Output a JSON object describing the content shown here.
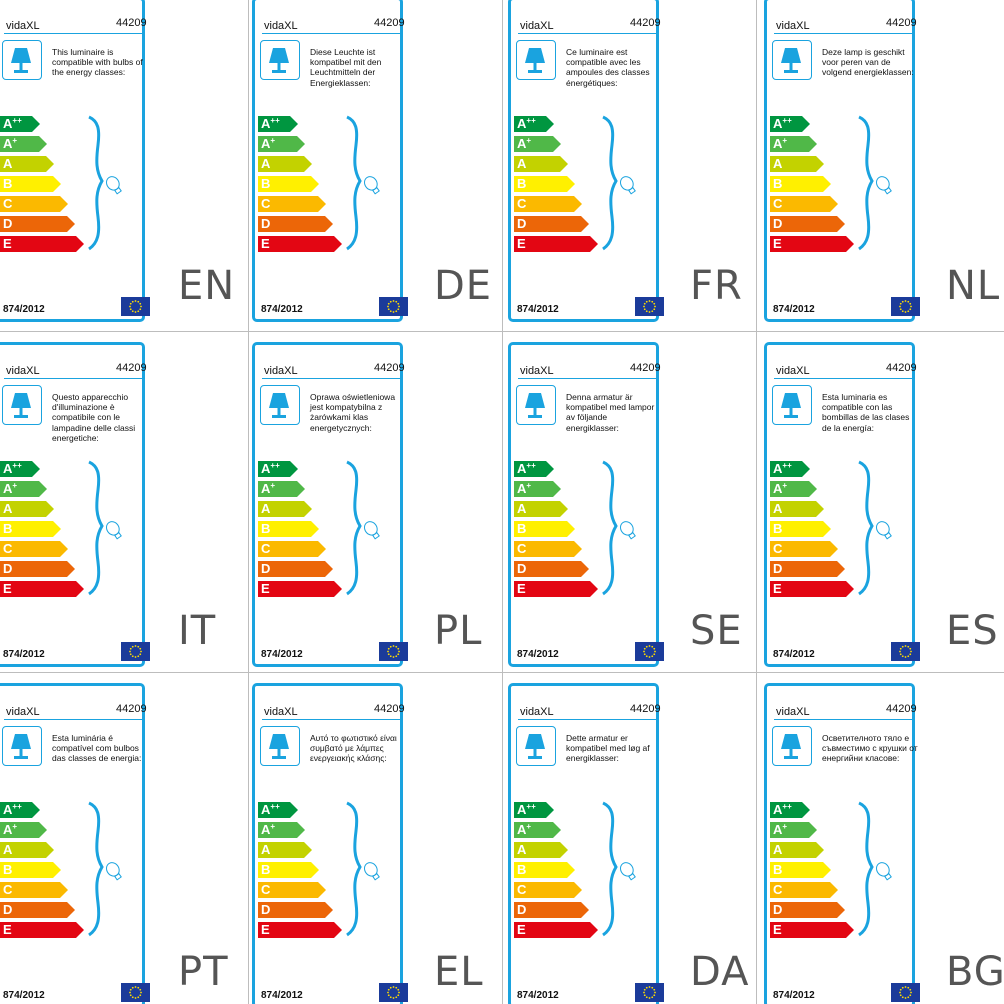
{
  "colors": {
    "frame": "#1aa3df",
    "eu_flag": "#1b3b9a",
    "classes": [
      "#009640",
      "#50b848",
      "#c3d200",
      "#fff000",
      "#fbb900",
      "#ec6608",
      "#e30613"
    ]
  },
  "brand": "vidaXL",
  "product_code": "44209",
  "regulation": "874/2012",
  "icons": [
    "lamp-icon",
    "bracket-icon",
    "bulb-icon",
    "eu-flag-icon"
  ],
  "energy_classes": [
    {
      "letter": "A",
      "plus": "++"
    },
    {
      "letter": "A",
      "plus": "+"
    },
    {
      "letter": "A",
      "plus": ""
    },
    {
      "letter": "B",
      "plus": ""
    },
    {
      "letter": "C",
      "plus": ""
    },
    {
      "letter": "D",
      "plus": ""
    },
    {
      "letter": "E",
      "plus": ""
    }
  ],
  "labels": [
    {
      "lang": "EN",
      "text": "This luminaire is compatible with bulbs of the energy classes:"
    },
    {
      "lang": "DE",
      "text": "Diese Leuchte ist kompatibel mit den Leuchtmitteln der Energieklassen:"
    },
    {
      "lang": "FR",
      "text": "Ce luminaire est compatible avec les ampoules des classes énergétiques:"
    },
    {
      "lang": "NL",
      "text": "Deze lamp is geschikt voor peren van de volgend energieklassen:"
    },
    {
      "lang": "IT",
      "text": "Questo apparecchio d'illuminazione è compatibile con le lampadine delle classi energetiche:"
    },
    {
      "lang": "PL",
      "text": "Oprawa oświetleniowa jest kompatybilna z żarówkami klas energetycznych:"
    },
    {
      "lang": "SE",
      "text": "Denna armatur är kompatibel med lampor av följande energiklasser:"
    },
    {
      "lang": "ES",
      "text": "Esta luminaria es compatible con las bombillas de las clases de la energía:"
    },
    {
      "lang": "PT",
      "text": "Esta luminária é compatível com bulbos das classes de energia:"
    },
    {
      "lang": "EL",
      "text": "Αυτό το φωτιστικό είναι συμβατό με λάμπες ενεργειακής κλάσης:"
    },
    {
      "lang": "DA",
      "text": "Dette armatur er kompatibel med løg af energiklasser:"
    },
    {
      "lang": "BG",
      "text": "Осветителното тяло е съвместимо с крушки от енергийни класове:"
    }
  ]
}
